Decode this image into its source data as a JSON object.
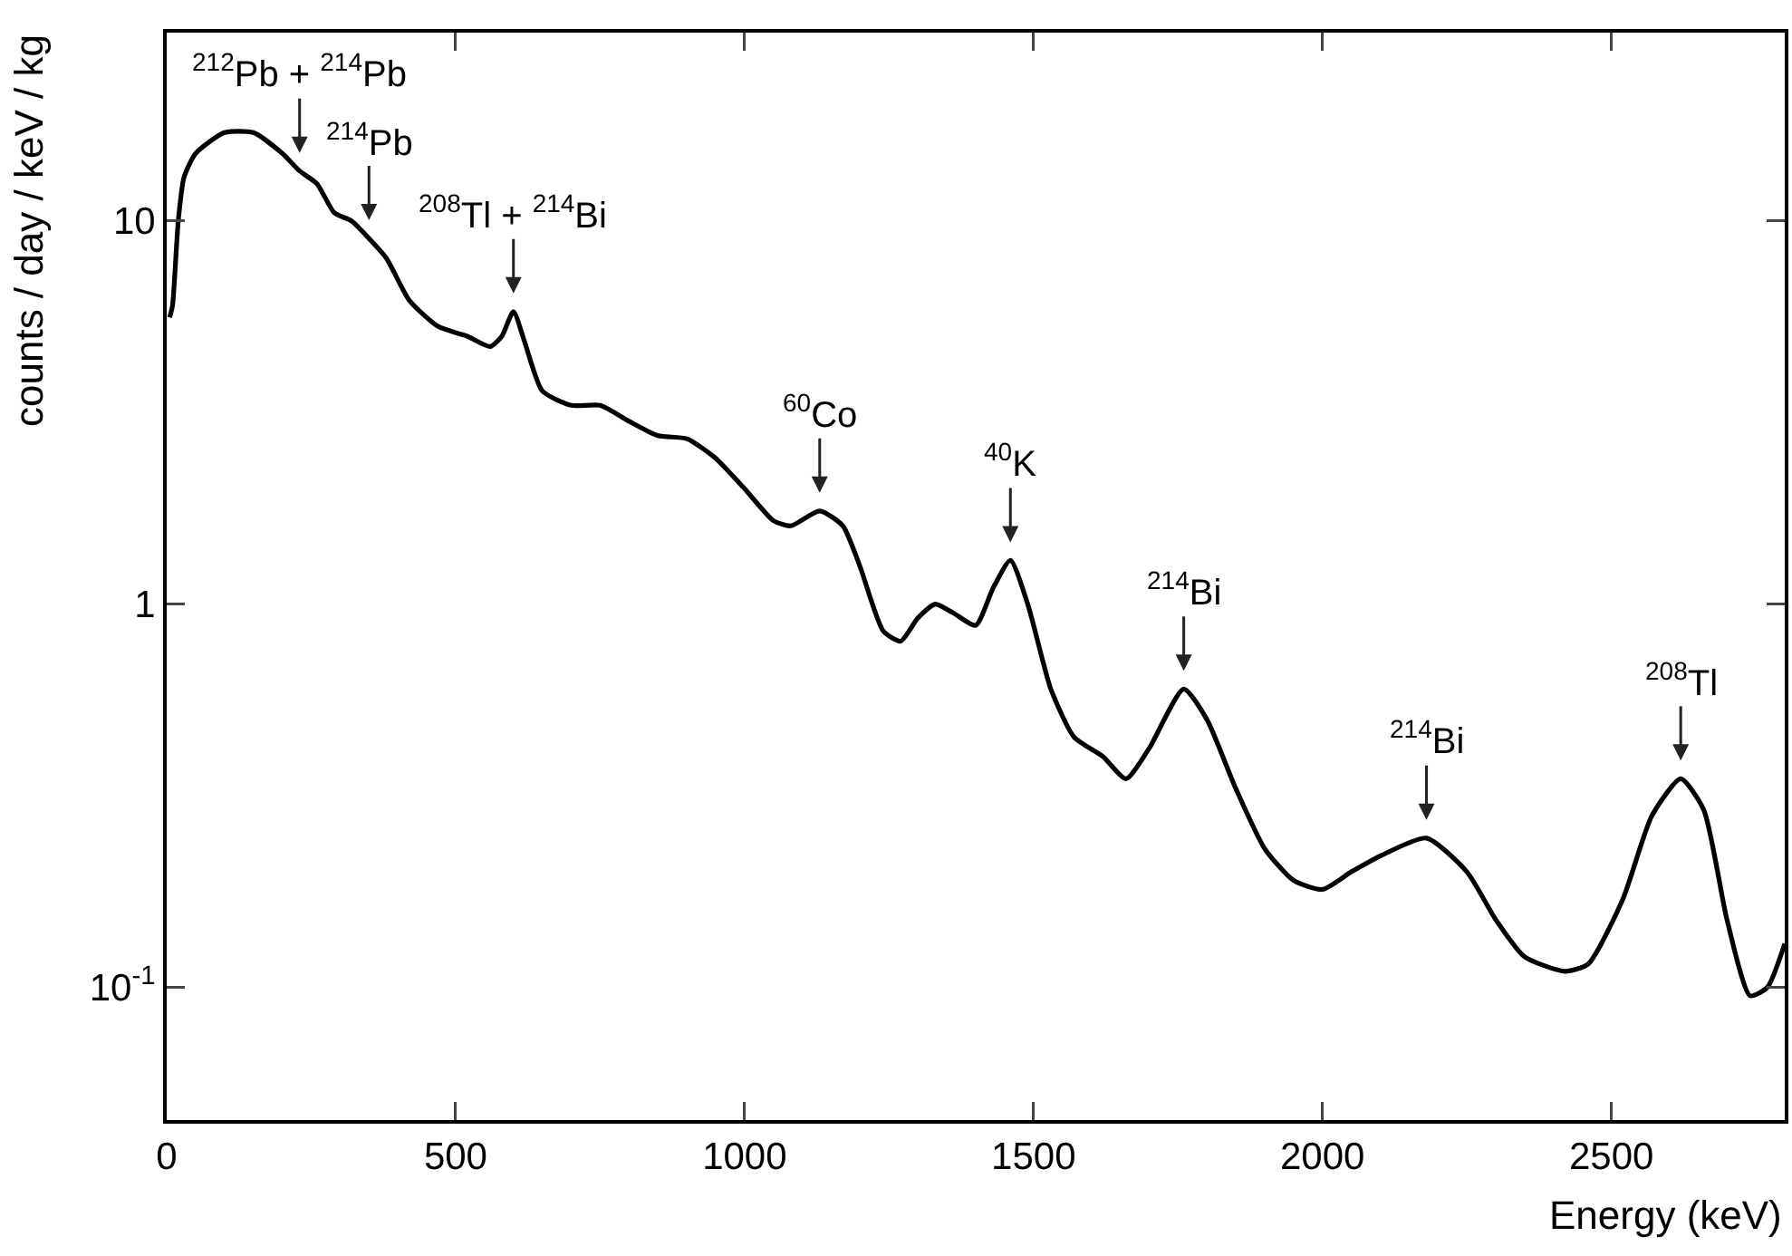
{
  "chart_data": {
    "type": "line",
    "xlabel": "Energy (keV)",
    "ylabel": "counts / day / keV / kg",
    "log": "y",
    "grid": false,
    "legend": false,
    "marker": "none",
    "line_style": "solid",
    "xlim": [
      0,
      2800
    ],
    "xticks": [
      0,
      500,
      1000,
      1500,
      2000,
      2500
    ],
    "ylim": [
      0.045,
      31
    ],
    "yticks": [
      {
        "value": 0.1,
        "label": "10$^{-1}$"
      },
      1,
      10
    ],
    "series": [
      {
        "color": "#000000",
        "x": [
          5,
          10,
          20,
          30,
          50,
          100,
          150,
          200,
          230,
          260,
          290,
          320,
          350,
          380,
          420,
          470,
          520,
          560,
          580,
          600,
          620,
          650,
          700,
          750,
          800,
          850,
          900,
          950,
          1000,
          1050,
          1080,
          1130,
          1170,
          1200,
          1240,
          1270,
          1300,
          1330,
          1360,
          1400,
          1430,
          1460,
          1490,
          1530,
          1570,
          1620,
          1660,
          1700,
          1760,
          1800,
          1850,
          1900,
          1950,
          2000,
          2050,
          2100,
          2180,
          2250,
          2300,
          2350,
          2420,
          2460,
          2520,
          2570,
          2620,
          2660,
          2700,
          2740,
          2770,
          2800
        ],
        "values": [
          5.6,
          6,
          10,
          13,
          15,
          17,
          17,
          15,
          13.5,
          12.5,
          10.5,
          10,
          9,
          8,
          6.2,
          5.3,
          5,
          4.7,
          5,
          5.8,
          4.8,
          3.6,
          3.3,
          3.3,
          3,
          2.75,
          2.7,
          2.4,
          2,
          1.65,
          1.6,
          1.75,
          1.6,
          1.25,
          0.85,
          0.8,
          0.92,
          1,
          0.95,
          0.88,
          1.1,
          1.3,
          1,
          0.6,
          0.45,
          0.4,
          0.35,
          0.42,
          0.6,
          0.5,
          0.33,
          0.23,
          0.19,
          0.18,
          0.2,
          0.22,
          0.245,
          0.2,
          0.15,
          0.12,
          0.11,
          0.115,
          0.17,
          0.28,
          0.35,
          0.29,
          0.15,
          0.095,
          0.1,
          0.13
        ]
      }
    ],
    "annotations": [
      {
        "text": "$^{212}$Pb + $^{214}$Pb",
        "x": 230,
        "y": 13.5
      },
      {
        "text": "$^{214}$Pb",
        "x": 350,
        "y": 9
      },
      {
        "text": "$^{208}$Tl + $^{214}$Bi",
        "x": 600,
        "y": 5.8
      },
      {
        "text": "$^{60}$Co",
        "x": 1130,
        "y": 1.75
      },
      {
        "text": "$^{40}$K",
        "x": 1460,
        "y": 1.3
      },
      {
        "text": "$^{214}$Bi",
        "x": 1760,
        "y": 0.6
      },
      {
        "text": "$^{214}$Bi",
        "x": 2180,
        "y": 0.245
      },
      {
        "text": "$^{208}$Tl",
        "x": 2620,
        "y": 0.35
      }
    ]
  }
}
